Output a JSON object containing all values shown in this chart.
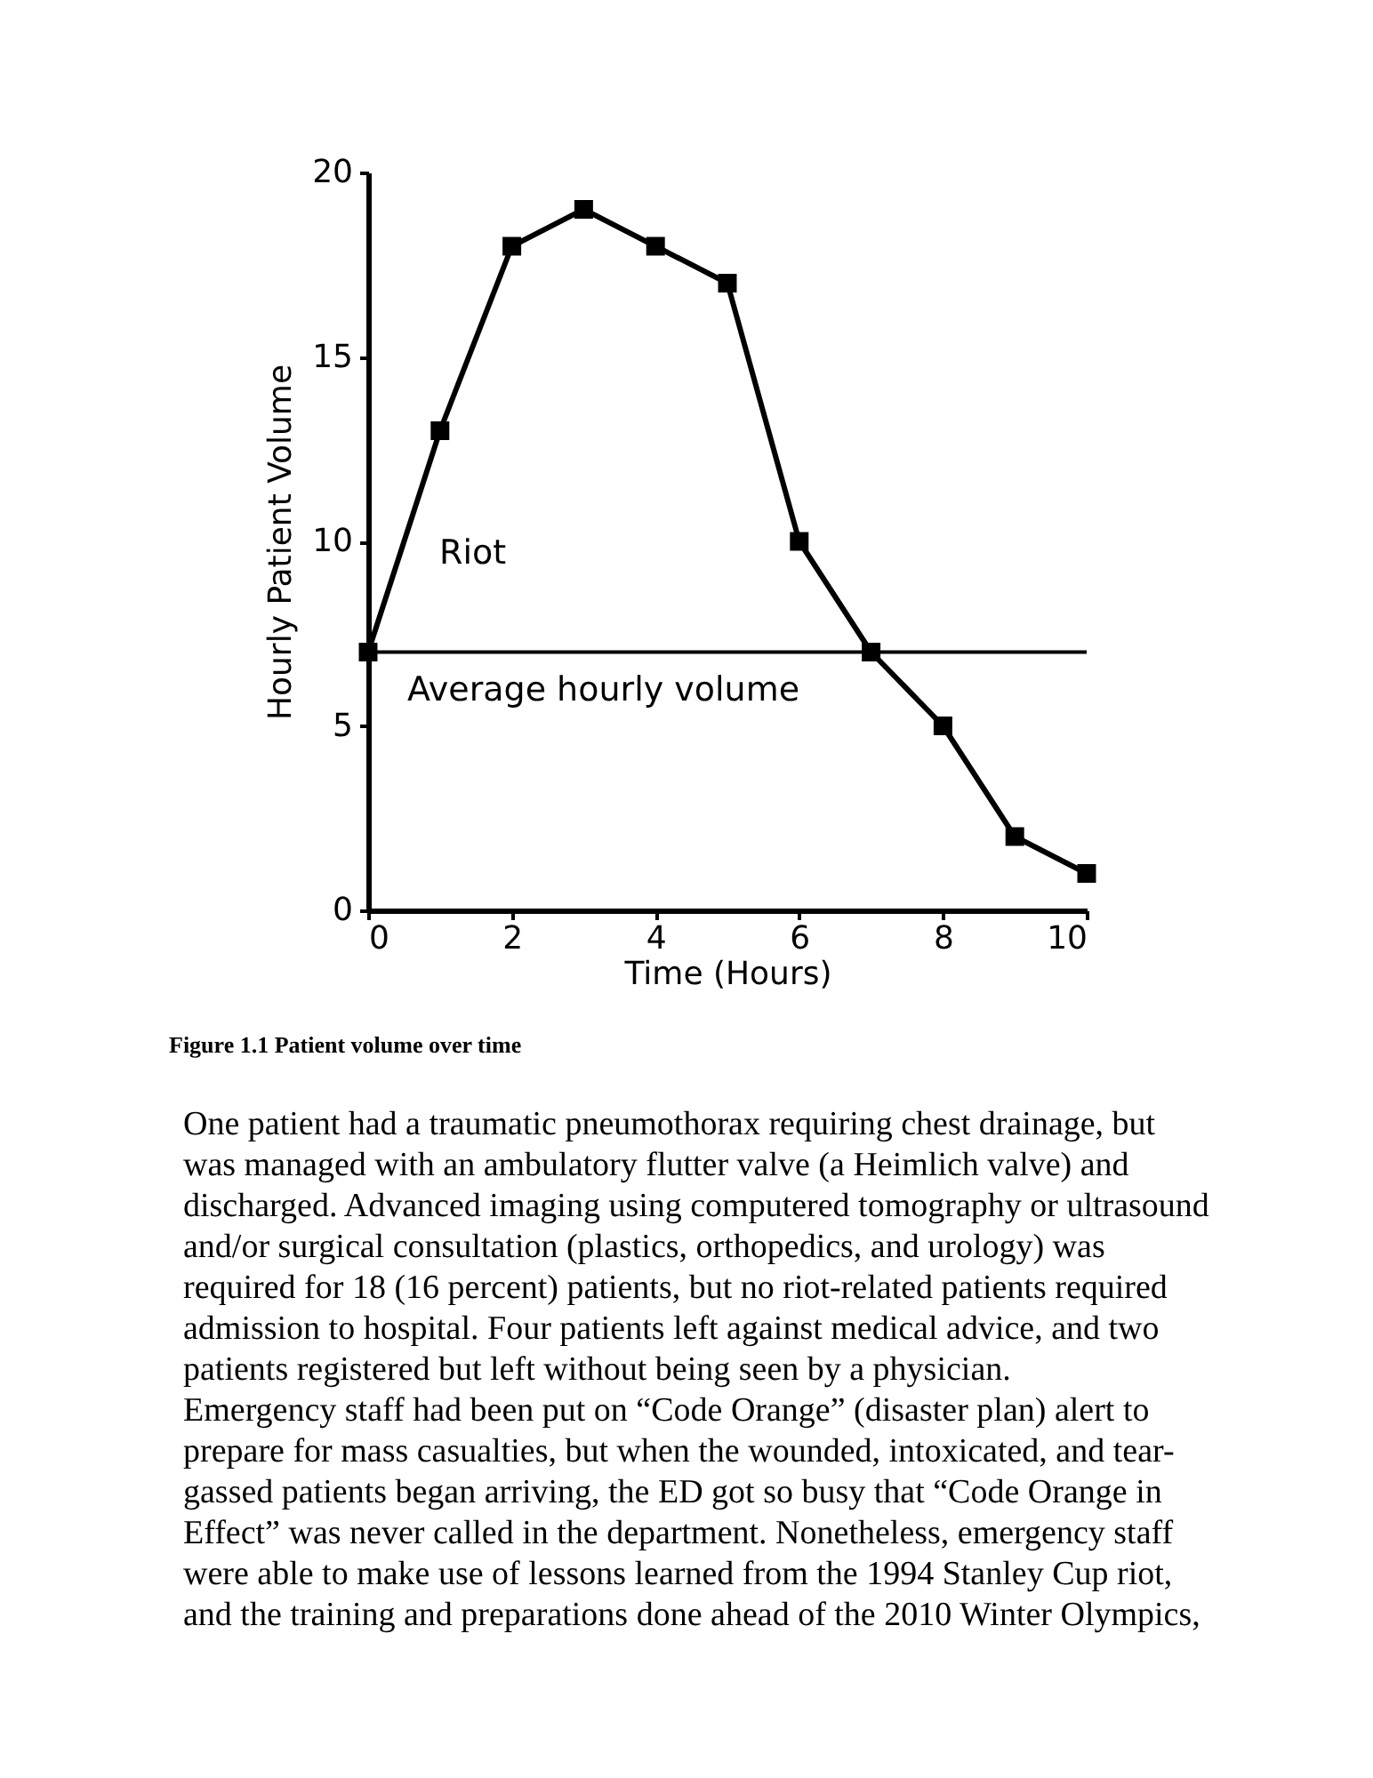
{
  "chart_data": {
    "type": "line",
    "xlabel": "Time (Hours)",
    "ylabel": "Hourly Patient Volume",
    "x": [
      0,
      1,
      2,
      3,
      4,
      5,
      6,
      7,
      8,
      9,
      10
    ],
    "series": [
      {
        "color": "#000000",
        "values": [
          7,
          13,
          18,
          19,
          18,
          17,
          10,
          7,
          5,
          2,
          1
        ]
      }
    ],
    "xlim": [
      0,
      10
    ],
    "xticks": [
      0,
      2,
      4,
      6,
      8,
      10
    ],
    "ylim": [
      0,
      20
    ],
    "yticks": [
      0,
      5,
      10,
      15,
      20
    ],
    "marker": "square",
    "line_style": "solid",
    "grid": false,
    "ref_lines": [
      {
        "axis": "y",
        "value": 7,
        "label": "Average hourly volume",
        "color": "#000000"
      }
    ],
    "annotations": [
      "Riot",
      "Figure 1.1 Patient volume over time",
      "One patient had a traumatic pneumothorax requiring chest drainage, but",
      "was managed with an ambulatory flutter valve (a Heimlich valve) and",
      "discharged. Advanced imaging using computered tomography or ultrasound",
      "and/or surgical consultation (plastics, orthopedics, and urology) was",
      "required for 18 (16 percent) patients, but no riot-related patients required",
      "admission to hospital. Four patients left against medical advice, and two",
      "patients registered but left without being seen by a physician.",
      "Emergency staff had been put on “Code Orange” (disaster plan) alert to",
      "prepare for mass casualties, but when the wounded, intoxicated, and tear-",
      "gassed patients began arriving, the ED got so busy that “Code Orange in",
      "Effect” was never called in the department. Nonetheless, emergency staff",
      "were able to make use of lessons learned from the 1994 Stanley Cup riot,",
      "and the training and preparations done ahead of the 2010 Winter Olympics,"
    ]
  }
}
